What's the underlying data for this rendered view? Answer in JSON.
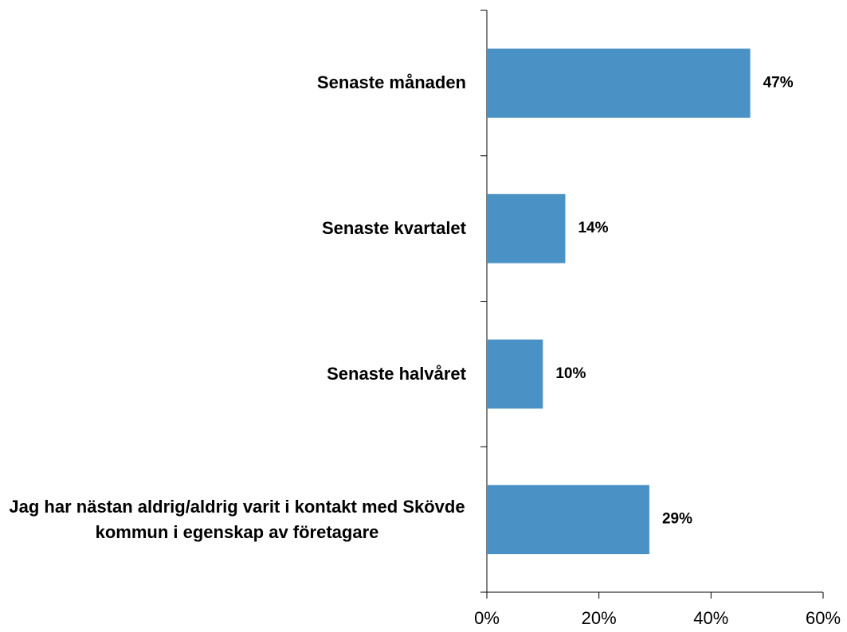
{
  "chart_data": {
    "type": "bar",
    "orientation": "horizontal",
    "categories": [
      "Senaste månaden",
      "Senaste kvartalet",
      "Senaste halvåret",
      "Jag har nästan aldrig/aldrig varit i kontakt med Skövde kommun i egenskap av företagare"
    ],
    "values": [
      47,
      14,
      10,
      29
    ],
    "value_labels": [
      "47%",
      "14%",
      "10%",
      "29%"
    ],
    "color": "#4a92c6",
    "xlim": [
      0,
      60
    ],
    "xticks": [
      {
        "value": 0,
        "label": "0%"
      },
      {
        "value": 20,
        "label": "20%"
      },
      {
        "value": 40,
        "label": "40%"
      },
      {
        "value": 60,
        "label": "60%"
      }
    ],
    "grid": false
  }
}
